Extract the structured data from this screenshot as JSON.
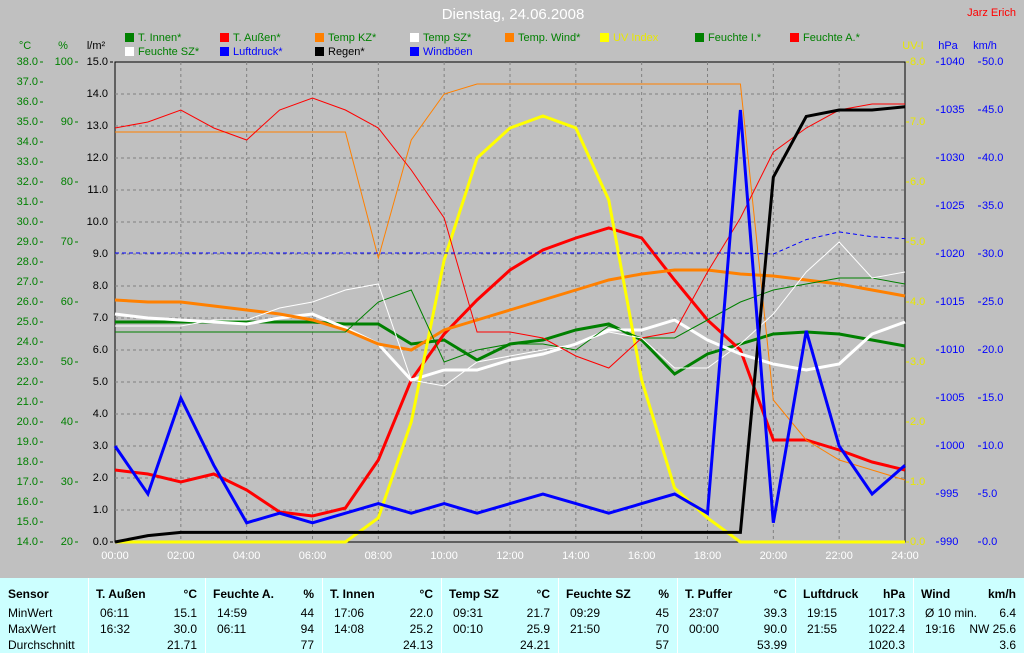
{
  "chart_data": {
    "type": "line",
    "title": "Dienstag, 24.06.2008",
    "author": "Jarz Erich",
    "grid": true,
    "x": [
      0,
      1,
      2,
      3,
      4,
      5,
      6,
      7,
      8,
      9,
      10,
      11,
      12,
      13,
      14,
      15,
      16,
      17,
      18,
      19,
      20,
      21,
      22,
      23,
      24
    ],
    "xlim": [
      0,
      24
    ],
    "xticks": [
      {
        "value": 0,
        "label": "00:00"
      },
      {
        "value": 2,
        "label": "02:00"
      },
      {
        "value": 4,
        "label": "04:00"
      },
      {
        "value": 6,
        "label": "06:00"
      },
      {
        "value": 8,
        "label": "08:00"
      },
      {
        "value": 10,
        "label": "10:00"
      },
      {
        "value": 12,
        "label": "12:00"
      },
      {
        "value": 14,
        "label": "14:00"
      },
      {
        "value": 16,
        "label": "16:00"
      },
      {
        "value": 18,
        "label": "18:00"
      },
      {
        "value": 20,
        "label": "20:00"
      },
      {
        "value": 22,
        "label": "22:00"
      },
      {
        "value": 24,
        "label": "24:00"
      }
    ],
    "axes": {
      "temp": {
        "label": "°C",
        "color": "#008000",
        "lim": [
          14,
          38
        ],
        "ticks": [
          {
            "value": 14,
            "label": "14.0"
          },
          {
            "value": 15,
            "label": "15.0"
          },
          {
            "value": 16,
            "label": "16.0"
          },
          {
            "value": 17,
            "label": "17.0"
          },
          {
            "value": 18,
            "label": "18.0"
          },
          {
            "value": 19,
            "label": "19.0"
          },
          {
            "value": 20,
            "label": "20.0"
          },
          {
            "value": 21,
            "label": "21.0"
          },
          {
            "value": 22,
            "label": "22.0"
          },
          {
            "value": 23,
            "label": "23.0"
          },
          {
            "value": 24,
            "label": "24.0"
          },
          {
            "value": 25,
            "label": "25.0"
          },
          {
            "value": 26,
            "label": "26.0"
          },
          {
            "value": 27,
            "label": "27.0"
          },
          {
            "value": 28,
            "label": "28.0"
          },
          {
            "value": 29,
            "label": "29.0"
          },
          {
            "value": 30,
            "label": "30.0"
          },
          {
            "value": 31,
            "label": "31.0"
          },
          {
            "value": 32,
            "label": "32.0"
          },
          {
            "value": 33,
            "label": "33.0"
          },
          {
            "value": 34,
            "label": "34.0"
          },
          {
            "value": 35,
            "label": "35.0"
          },
          {
            "value": 36,
            "label": "36.0"
          },
          {
            "value": 37,
            "label": "37.0"
          },
          {
            "value": 38,
            "label": "38.0"
          }
        ]
      },
      "hum": {
        "label": "%",
        "color": "#008000",
        "lim": [
          20,
          100
        ],
        "ticks": [
          20,
          30,
          40,
          50,
          60,
          70,
          80,
          90,
          100
        ]
      },
      "rain": {
        "label": "l/m²",
        "color": "#000000",
        "lim": [
          0,
          15
        ],
        "ticks": [
          {
            "value": 0,
            "label": "0.0"
          },
          {
            "value": 1,
            "label": "1.0"
          },
          {
            "value": 2,
            "label": "2.0"
          },
          {
            "value": 3,
            "label": "3.0"
          },
          {
            "value": 4,
            "label": "4.0"
          },
          {
            "value": 5,
            "label": "5.0"
          },
          {
            "value": 6,
            "label": "6.0"
          },
          {
            "value": 7,
            "label": "7.0"
          },
          {
            "value": 8,
            "label": "8.0"
          },
          {
            "value": 9,
            "label": "9.0"
          },
          {
            "value": 10,
            "label": "10.0"
          },
          {
            "value": 11,
            "label": "11.0"
          },
          {
            "value": 12,
            "label": "12.0"
          },
          {
            "value": 13,
            "label": "13.0"
          },
          {
            "value": 14,
            "label": "14.0"
          },
          {
            "value": 15,
            "label": "15.0"
          }
        ]
      },
      "uv": {
        "label": "UV-I",
        "color": "#e8e800",
        "lim": [
          0,
          8
        ],
        "ticks": [
          {
            "value": 0,
            "label": "0.0"
          },
          {
            "value": 1,
            "label": "1.0"
          },
          {
            "value": 2,
            "label": "2.0"
          },
          {
            "value": 3,
            "label": "3.0"
          },
          {
            "value": 4,
            "label": "4.0"
          },
          {
            "value": 5,
            "label": "5.0"
          },
          {
            "value": 6,
            "label": "6.0"
          },
          {
            "value": 7,
            "label": "7.0"
          },
          {
            "value": 8,
            "label": "8.0"
          }
        ]
      },
      "press": {
        "label": "hPa",
        "color": "#0000ff",
        "lim": [
          990,
          1040
        ],
        "ticks": [
          990,
          995,
          1000,
          1005,
          1010,
          1015,
          1020,
          1025,
          1030,
          1035,
          1040
        ]
      },
      "wind": {
        "label": "km/h",
        "color": "#0000ff",
        "lim": [
          0,
          50
        ],
        "ticks": [
          {
            "value": 0,
            "label": "0.0"
          },
          {
            "value": 5,
            "label": "5.0"
          },
          {
            "value": 10,
            "label": "10.0"
          },
          {
            "value": 15,
            "label": "15.0"
          },
          {
            "value": 20,
            "label": "20.0"
          },
          {
            "value": 25,
            "label": "25.0"
          },
          {
            "value": 30,
            "label": "30.0"
          },
          {
            "value": 35,
            "label": "35.0"
          },
          {
            "value": 40,
            "label": "40.0"
          },
          {
            "value": 45,
            "label": "45.0"
          },
          {
            "value": 50,
            "label": "50.0"
          }
        ]
      }
    },
    "series": [
      {
        "name": "T. Innen*",
        "color": "#008000",
        "axis": "temp",
        "width": 3,
        "values": [
          25.0,
          25.0,
          25.0,
          25.0,
          25.0,
          25.0,
          25.0,
          24.9,
          24.9,
          23.9,
          24.1,
          23.1,
          23.9,
          24.1,
          24.6,
          24.9,
          24.1,
          22.4,
          23.4,
          23.9,
          24.4,
          24.5,
          24.4,
          24.1,
          23.8
        ]
      },
      {
        "name": "T. Außen*",
        "color": "#ff0000",
        "axis": "temp",
        "width": 3,
        "values": [
          17.6,
          17.4,
          17.0,
          17.4,
          16.6,
          15.5,
          15.3,
          15.7,
          18.1,
          22.1,
          24.4,
          26.1,
          27.6,
          28.6,
          29.2,
          29.7,
          29.2,
          27.1,
          25.1,
          23.6,
          19.1,
          19.1,
          18.6,
          18.0,
          17.6
        ]
      },
      {
        "name": "Temp KZ*",
        "color": "#ff8000",
        "axis": "temp",
        "width": 1,
        "values": [
          34.5,
          34.5,
          34.5,
          34.5,
          34.5,
          34.5,
          34.5,
          34.5,
          28.2,
          34.1,
          36.4,
          36.9,
          36.9,
          36.9,
          36.9,
          36.9,
          36.9,
          36.9,
          36.9,
          36.9,
          21.1,
          19.1,
          18.1,
          17.6,
          17.1
        ]
      },
      {
        "name": "Temp SZ*",
        "color": "#ffffff",
        "axis": "temp",
        "width": 3,
        "values": [
          25.4,
          25.2,
          25.1,
          25.0,
          24.9,
          25.2,
          25.4,
          24.7,
          23.9,
          22.1,
          22.6,
          22.6,
          23.1,
          23.4,
          23.9,
          24.6,
          24.6,
          25.1,
          24.1,
          23.4,
          22.9,
          22.6,
          22.9,
          24.4,
          25.0
        ]
      },
      {
        "name": "Temp. Wind*",
        "color": "#ff8000",
        "axis": "temp",
        "width": 3,
        "values": [
          26.1,
          26.0,
          26.0,
          25.8,
          25.6,
          25.4,
          25.1,
          24.6,
          23.9,
          23.6,
          24.6,
          25.1,
          25.6,
          26.1,
          26.6,
          27.1,
          27.4,
          27.6,
          27.6,
          27.4,
          27.3,
          27.1,
          26.9,
          26.6,
          26.3
        ]
      },
      {
        "name": "UV Index",
        "color": "#ffff00",
        "axis": "uv",
        "width": 3,
        "values": [
          0,
          0,
          0,
          0,
          0,
          0,
          0,
          0,
          0.4,
          2.0,
          4.7,
          6.4,
          6.9,
          7.1,
          6.9,
          5.7,
          2.7,
          0.9,
          0.4,
          0,
          0,
          0,
          0,
          0,
          0
        ]
      },
      {
        "name": "Feuchte I.*",
        "color": "#008000",
        "axis": "hum",
        "width": 1,
        "values": [
          55,
          55,
          55,
          55,
          55,
          55,
          55,
          55,
          60,
          62,
          50,
          52,
          53,
          53,
          52,
          56,
          54,
          54,
          57,
          60,
          62,
          63,
          64,
          64,
          63
        ]
      },
      {
        "name": "Feuchte A.*",
        "color": "#ff0000",
        "axis": "hum",
        "width": 1,
        "values": [
          89,
          90,
          92,
          89,
          87,
          92,
          94,
          92,
          89,
          82,
          74,
          55,
          55,
          54,
          51,
          49,
          54,
          55,
          65,
          74,
          85,
          89,
          92,
          93,
          93
        ]
      },
      {
        "name": "Feuchte SZ*",
        "color": "#ffffff",
        "axis": "hum",
        "width": 1,
        "values": [
          56,
          56,
          56,
          57,
          57,
          59,
          60,
          62,
          63,
          47,
          46,
          50,
          51,
          52,
          53,
          55,
          54,
          49,
          49,
          53,
          58,
          65,
          70,
          64,
          65
        ]
      },
      {
        "name": "Luftdruck*",
        "color": "#0000ff",
        "axis": "press",
        "width": 1,
        "dashed": true,
        "values": [
          1020.1,
          1020.1,
          1020.1,
          1020.1,
          1020.1,
          1020.1,
          1020.1,
          1020.1,
          1020.1,
          1020.1,
          1020.1,
          1020.1,
          1020.1,
          1020.1,
          1020.1,
          1020.1,
          1020.1,
          1020.1,
          1020.1,
          1020.1,
          1020.0,
          1021.5,
          1022.3,
          1021.8,
          1021.6
        ]
      },
      {
        "name": "Regen*",
        "color": "#000000",
        "axis": "rain",
        "width": 3,
        "values": [
          0,
          0.2,
          0.3,
          0.3,
          0.3,
          0.3,
          0.3,
          0.3,
          0.3,
          0.3,
          0.3,
          0.3,
          0.3,
          0.3,
          0.3,
          0.3,
          0.3,
          0.3,
          0.3,
          0.3,
          11.4,
          13.3,
          13.5,
          13.5,
          13.6
        ]
      },
      {
        "name": "Windböen",
        "color": "#0000ff",
        "axis": "wind",
        "width": 3,
        "values": [
          10,
          5,
          15,
          8,
          2,
          3,
          2,
          3,
          4,
          3,
          4,
          3,
          4,
          5,
          4,
          3,
          4,
          5,
          3,
          45,
          2,
          22,
          10,
          5,
          8
        ]
      }
    ]
  },
  "table": {
    "sensor": "Sensor",
    "columns": [
      {
        "name": "T. Außen",
        "unit": "°C"
      },
      {
        "name": "Feuchte A.",
        "unit": "%"
      },
      {
        "name": "T. Innen",
        "unit": "°C"
      },
      {
        "name": "Temp SZ",
        "unit": "°C"
      },
      {
        "name": "Feuchte SZ",
        "unit": "%"
      },
      {
        "name": "T. Puffer",
        "unit": "°C"
      },
      {
        "name": "Luftdruck",
        "unit": "hPa"
      },
      {
        "name": "Wind",
        "unit": "km/h"
      }
    ],
    "rows": [
      {
        "label": "MinWert",
        "cells": [
          {
            "time": "06:11",
            "value": "15.1"
          },
          {
            "time": "14:59",
            "value": "44"
          },
          {
            "time": "17:06",
            "value": "22.0"
          },
          {
            "time": "09:31",
            "value": "21.7"
          },
          {
            "time": "09:29",
            "value": "45"
          },
          {
            "time": "23:07",
            "value": "39.3"
          },
          {
            "time": "19:15",
            "value": "1017.3"
          },
          {
            "time": "Ø 10 min.",
            "value": "6.4"
          }
        ]
      },
      {
        "label": "MaxWert",
        "cells": [
          {
            "time": "16:32",
            "value": "30.0"
          },
          {
            "time": "06:11",
            "value": "94"
          },
          {
            "time": "14:08",
            "value": "25.2"
          },
          {
            "time": "00:10",
            "value": "25.9"
          },
          {
            "time": "21:50",
            "value": "70"
          },
          {
            "time": "00:00",
            "value": "90.0"
          },
          {
            "time": "21:55",
            "value": "1022.4"
          },
          {
            "time": "19:16",
            "value": "NW 25.6"
          }
        ]
      },
      {
        "label": "Durchschnitt",
        "cells": [
          {
            "value": "21.71"
          },
          {
            "value": "77"
          },
          {
            "value": "24.13"
          },
          {
            "value": "24.21"
          },
          {
            "value": "57"
          },
          {
            "value": "53.99"
          },
          {
            "value": "1020.3"
          },
          {
            "value": "3.6"
          }
        ]
      }
    ]
  }
}
